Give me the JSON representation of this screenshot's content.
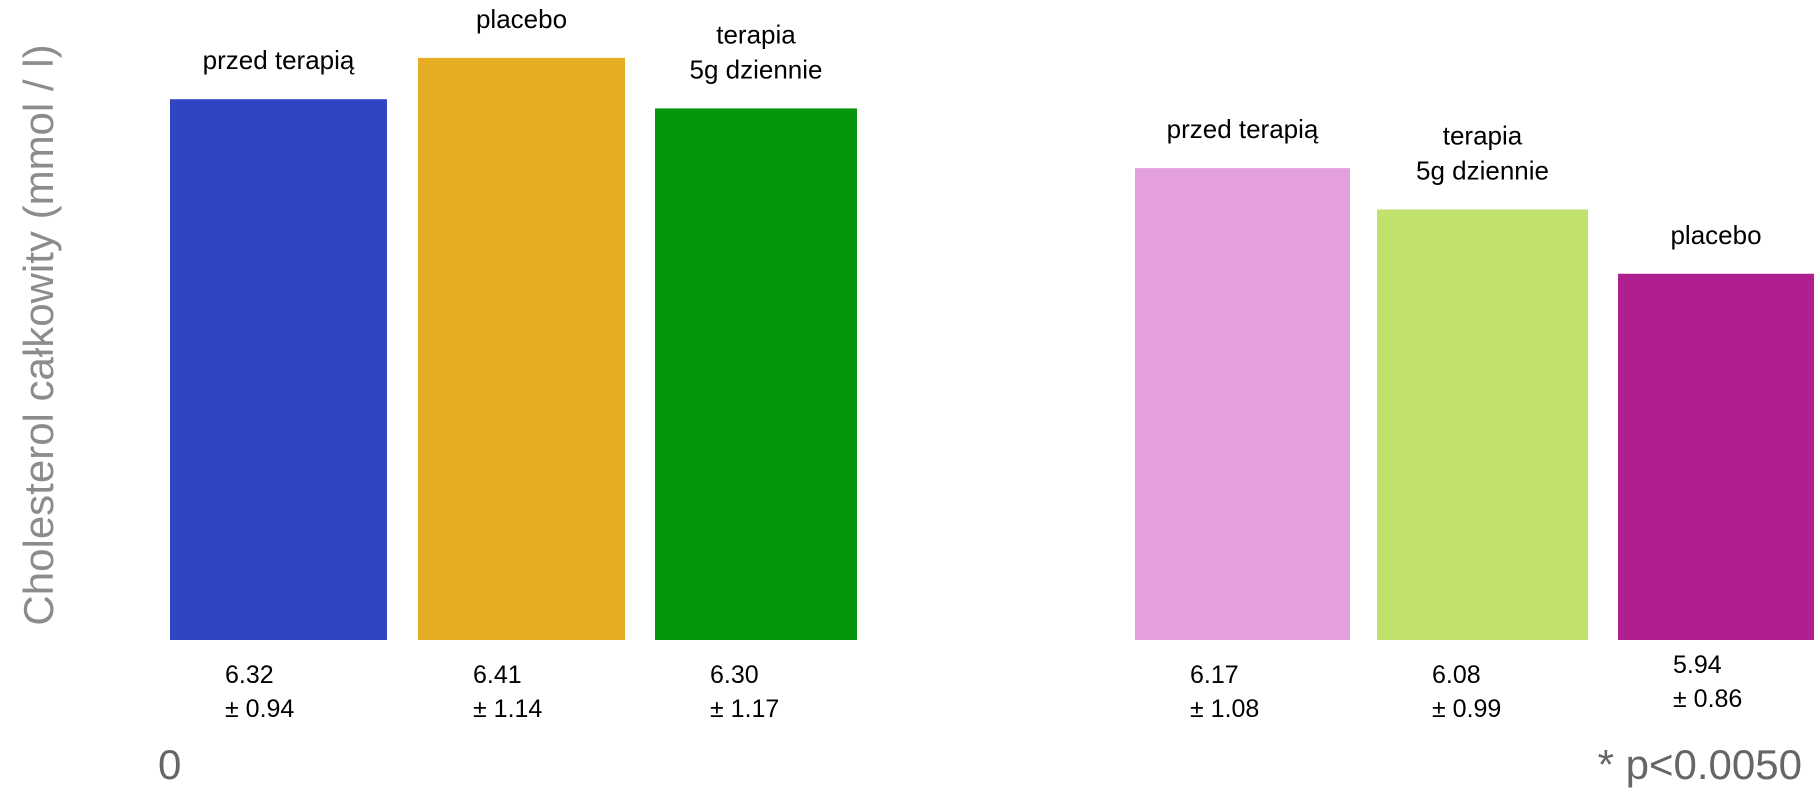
{
  "chart_data": {
    "type": "bar",
    "ylabel": "Cholesterol całkowity (mmol / l)",
    "zero_label": "0",
    "footnote": "* p<0.0050",
    "groups": [
      {
        "bars": [
          {
            "label": [
              "przed terapią"
            ],
            "value": 6.32,
            "value_text": "6.32",
            "sd_text": "± 0.94",
            "color": "#2f45c2"
          },
          {
            "label": [
              "placebo"
            ],
            "value": 6.41,
            "value_text": "6.41",
            "sd_text": "± 1.14",
            "color": "#e5ac24"
          },
          {
            "label": [
              "terapia",
              "5g dziennie"
            ],
            "value": 6.3,
            "value_text": "6.30",
            "sd_text": "± 1.17",
            "color": "#05960b"
          }
        ]
      },
      {
        "bars": [
          {
            "label": [
              "przed terapią"
            ],
            "value": 6.17,
            "value_text": "6.17",
            "sd_text": "± 1.08",
            "color": "#e49fdd"
          },
          {
            "label": [
              "terapia",
              "5g dziennie"
            ],
            "value": 6.08,
            "value_text": "6.08",
            "sd_text": "± 0.99",
            "color": "#c0e16c"
          },
          {
            "label": [
              "placebo"
            ],
            "value": 5.94,
            "value_text": "5.94",
            "sd_text": "± 0.86",
            "color": "#b01f8f"
          }
        ]
      }
    ]
  }
}
